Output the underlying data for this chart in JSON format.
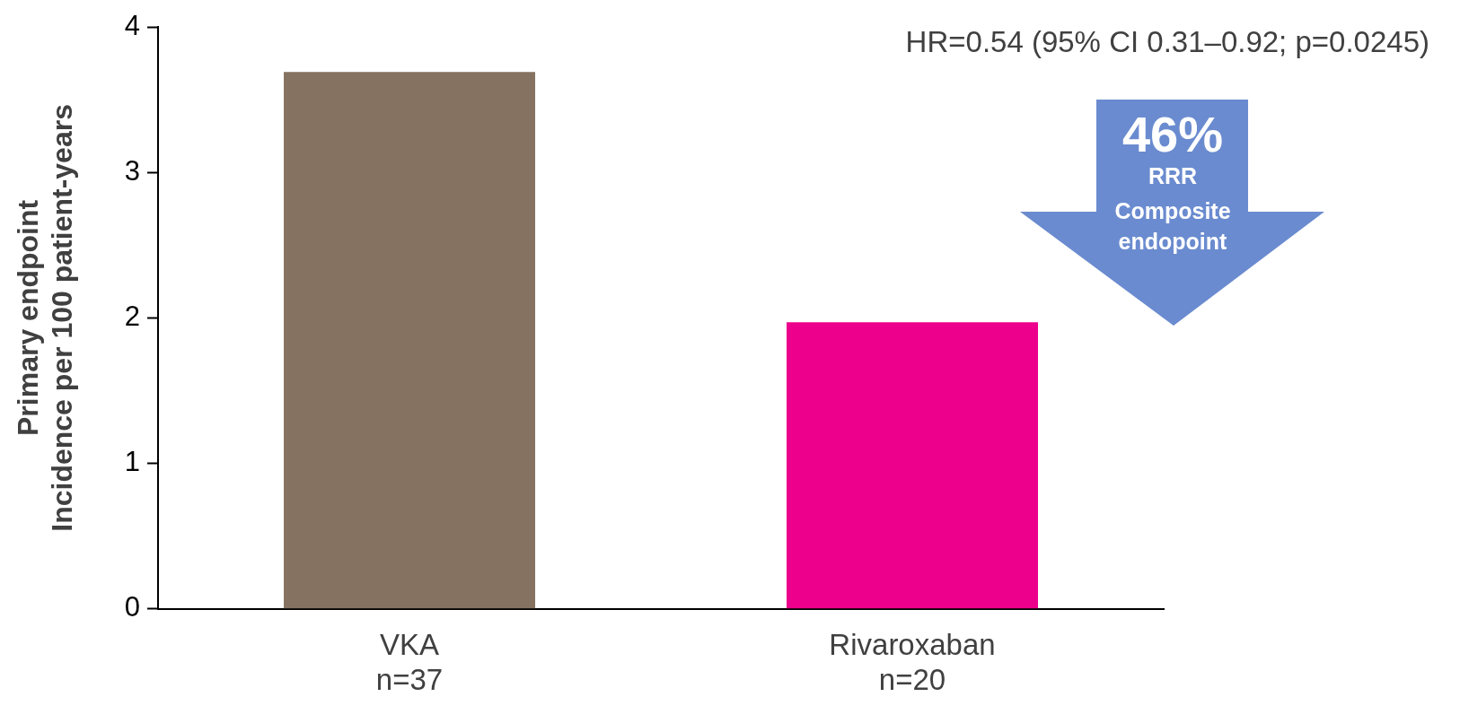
{
  "chart_data": {
    "type": "bar",
    "ylabel": "Primary endpoint\nIncidence per 100 patient-years",
    "categories": [
      "VKA\nn=37",
      "Rivaroxaban\nn=20"
    ],
    "values": [
      3.69,
      1.97
    ],
    "colors": [
      "#857260",
      "#ec008c"
    ],
    "ylim": [
      0,
      4
    ],
    "yticks": [
      0,
      1,
      2,
      3,
      4
    ],
    "grid": false,
    "legend": false,
    "annotations": [
      "HR=0.54 (95% CI 0.31–0.92; p=0.0245)",
      "46%",
      "RRR",
      "Composite endopoint"
    ]
  }
}
